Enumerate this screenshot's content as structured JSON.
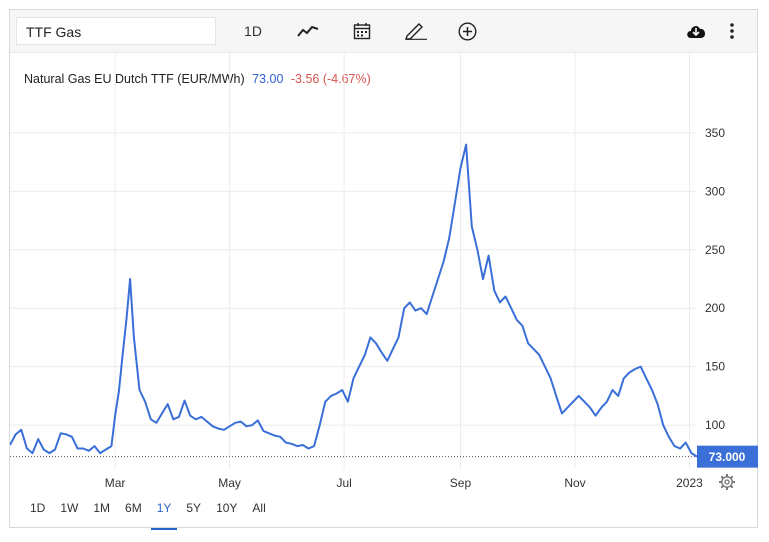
{
  "toolbar": {
    "symbol": "TTF Gas",
    "interval": "1D",
    "icons": [
      "line-chart-icon",
      "calendar-icon",
      "draw-pencil-icon",
      "add-circle-icon",
      "cloud-download-icon",
      "more-vertical-icon"
    ]
  },
  "header": {
    "name": "Natural Gas EU Dutch TTF (EUR/MWh)",
    "price": "73.00",
    "change": "-3.56 (-4.67%)"
  },
  "colors": {
    "line": "#3a6fd8",
    "price": "#2f62d0",
    "change": "#d9534f",
    "badge": "#3a6fd8"
  },
  "last_price_badge": "73.000",
  "range_buttons": [
    "1D",
    "1W",
    "1M",
    "6M",
    "1Y",
    "5Y",
    "10Y",
    "All"
  ],
  "active_range": "1Y",
  "chart_data": {
    "type": "line",
    "title": "Natural Gas EU Dutch TTF (EUR/MWh)",
    "xlabel": "",
    "ylabel": "",
    "ylim": [
      65,
      385
    ],
    "y_ticks": [
      100,
      150,
      200,
      250,
      300,
      350
    ],
    "x_ticks": [
      "Mar",
      "May",
      "Jul",
      "Sep",
      "Nov",
      "2023"
    ],
    "x_tick_dates": [
      "2022-03-01",
      "2022-05-01",
      "2022-07-01",
      "2022-09-01",
      "2022-11-01",
      "2023-01-01"
    ],
    "xlim": [
      "2022-01-04",
      "2023-01-05"
    ],
    "grid": true,
    "series": [
      {
        "x": [
          "2022-01-04",
          "2022-01-07",
          "2022-01-10",
          "2022-01-13",
          "2022-01-16",
          "2022-01-19",
          "2022-01-22",
          "2022-01-25",
          "2022-01-28",
          "2022-01-31",
          "2022-02-03",
          "2022-02-06",
          "2022-02-09",
          "2022-02-12",
          "2022-02-15",
          "2022-02-18",
          "2022-02-21",
          "2022-02-24",
          "2022-02-27",
          "2022-03-01",
          "2022-03-03",
          "2022-03-05",
          "2022-03-07",
          "2022-03-09",
          "2022-03-11",
          "2022-03-14",
          "2022-03-17",
          "2022-03-20",
          "2022-03-23",
          "2022-03-26",
          "2022-03-29",
          "2022-04-01",
          "2022-04-04",
          "2022-04-07",
          "2022-04-10",
          "2022-04-13",
          "2022-04-16",
          "2022-04-19",
          "2022-04-22",
          "2022-04-25",
          "2022-04-28",
          "2022-05-01",
          "2022-05-04",
          "2022-05-07",
          "2022-05-10",
          "2022-05-13",
          "2022-05-16",
          "2022-05-19",
          "2022-05-22",
          "2022-05-25",
          "2022-05-28",
          "2022-05-31",
          "2022-06-03",
          "2022-06-06",
          "2022-06-09",
          "2022-06-12",
          "2022-06-15",
          "2022-06-18",
          "2022-06-21",
          "2022-06-24",
          "2022-06-27",
          "2022-06-30",
          "2022-07-03",
          "2022-07-06",
          "2022-07-09",
          "2022-07-12",
          "2022-07-15",
          "2022-07-18",
          "2022-07-21",
          "2022-07-24",
          "2022-07-27",
          "2022-07-30",
          "2022-08-02",
          "2022-08-05",
          "2022-08-08",
          "2022-08-11",
          "2022-08-14",
          "2022-08-17",
          "2022-08-20",
          "2022-08-23",
          "2022-08-26",
          "2022-08-29",
          "2022-09-01",
          "2022-09-04",
          "2022-09-07",
          "2022-09-10",
          "2022-09-13",
          "2022-09-16",
          "2022-09-19",
          "2022-09-22",
          "2022-09-25",
          "2022-09-28",
          "2022-10-01",
          "2022-10-04",
          "2022-10-07",
          "2022-10-10",
          "2022-10-13",
          "2022-10-16",
          "2022-10-19",
          "2022-10-22",
          "2022-10-25",
          "2022-10-28",
          "2022-10-31",
          "2022-11-03",
          "2022-11-06",
          "2022-11-09",
          "2022-11-12",
          "2022-11-15",
          "2022-11-18",
          "2022-11-21",
          "2022-11-24",
          "2022-11-27",
          "2022-11-30",
          "2022-12-03",
          "2022-12-06",
          "2022-12-09",
          "2022-12-12",
          "2022-12-15",
          "2022-12-18",
          "2022-12-21",
          "2022-12-24",
          "2022-12-27",
          "2022-12-30",
          "2023-01-02",
          "2023-01-05"
        ],
        "y": [
          83,
          92,
          96,
          80,
          76,
          88,
          79,
          76,
          79,
          93,
          92,
          90,
          80,
          80,
          78,
          82,
          76,
          79,
          82,
          108,
          129,
          160,
          190,
          225,
          175,
          130,
          120,
          105,
          102,
          110,
          118,
          105,
          107,
          121,
          108,
          105,
          107,
          103,
          99,
          97,
          96,
          99,
          102,
          103,
          99,
          100,
          104,
          95,
          93,
          91,
          90,
          85,
          84,
          82,
          83,
          80,
          82,
          100,
          120,
          125,
          127,
          130,
          120,
          140,
          150,
          160,
          175,
          170,
          162,
          155,
          165,
          175,
          200,
          205,
          198,
          200,
          195,
          210,
          225,
          240,
          260,
          290,
          320,
          340,
          270,
          250,
          225,
          245,
          215,
          205,
          210,
          200,
          190,
          185,
          170,
          165,
          160,
          150,
          140,
          125,
          110,
          115,
          120,
          125,
          120,
          115,
          108,
          115,
          120,
          130,
          125,
          140,
          145,
          148,
          150,
          140,
          130,
          118,
          100,
          90,
          82,
          80,
          85,
          76,
          73
        ]
      }
    ]
  }
}
